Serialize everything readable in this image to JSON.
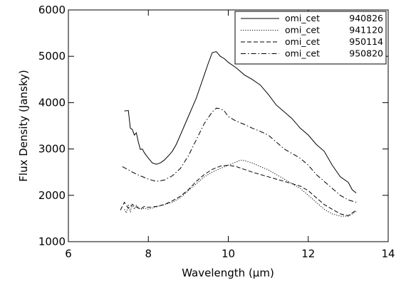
{
  "chart_data": {
    "type": "line",
    "title": "",
    "xlabel": "Wavelength (μm)",
    "ylabel": "Flux Density (Jansky)",
    "xlim": [
      6,
      14
    ],
    "ylim": [
      1000,
      6000
    ],
    "xticks": [
      6,
      8,
      10,
      12,
      14
    ],
    "yticks": [
      1000,
      2000,
      3000,
      4000,
      5000,
      6000
    ],
    "grid": false,
    "legend_position": "top-right",
    "series": [
      {
        "name": "omi_cet",
        "date": "940826",
        "style": "solid",
        "x": [
          7.4,
          7.5,
          7.55,
          7.6,
          7.65,
          7.7,
          7.75,
          7.8,
          7.85,
          7.9,
          8.0,
          8.1,
          8.2,
          8.3,
          8.4,
          8.5,
          8.6,
          8.7,
          8.8,
          8.9,
          9.0,
          9.1,
          9.2,
          9.3,
          9.4,
          9.5,
          9.6,
          9.7,
          9.8,
          9.9,
          10.0,
          10.2,
          10.4,
          10.6,
          10.8,
          11.0,
          11.2,
          11.4,
          11.6,
          11.8,
          12.0,
          12.2,
          12.4,
          12.6,
          12.8,
          13.0,
          13.1,
          13.2
        ],
        "y": [
          3820,
          3830,
          3450,
          3420,
          3300,
          3350,
          3150,
          2990,
          3000,
          2920,
          2800,
          2700,
          2670,
          2700,
          2760,
          2850,
          2950,
          3100,
          3300,
          3500,
          3700,
          3900,
          4100,
          4350,
          4600,
          4850,
          5080,
          5100,
          5000,
          4950,
          4870,
          4750,
          4600,
          4500,
          4380,
          4180,
          3950,
          3800,
          3650,
          3450,
          3300,
          3100,
          2950,
          2650,
          2400,
          2280,
          2120,
          2050
        ]
      },
      {
        "name": "omi_cet",
        "date": "941120",
        "style": "dotted",
        "x": [
          7.4,
          7.45,
          7.5,
          7.55,
          7.6,
          7.65,
          7.7,
          7.8,
          7.9,
          8.0,
          8.2,
          8.4,
          8.6,
          8.8,
          9.0,
          9.2,
          9.4,
          9.6,
          9.8,
          10.0,
          10.2,
          10.3,
          10.4,
          10.6,
          10.8,
          11.0,
          11.2,
          11.4,
          11.6,
          11.8,
          12.0,
          12.2,
          12.4,
          12.6,
          12.8,
          13.0,
          13.1,
          13.2
        ],
        "y": [
          1700,
          1620,
          1780,
          1650,
          1800,
          1700,
          1780,
          1700,
          1720,
          1700,
          1750,
          1800,
          1850,
          1950,
          2100,
          2250,
          2400,
          2500,
          2580,
          2650,
          2720,
          2760,
          2750,
          2700,
          2620,
          2550,
          2450,
          2350,
          2250,
          2150,
          2000,
          1850,
          1700,
          1600,
          1550,
          1550,
          1600,
          1650
        ]
      },
      {
        "name": "omi_cet",
        "date": "950114",
        "style": "dashed",
        "x": [
          7.3,
          7.4,
          7.5,
          7.6,
          7.7,
          7.8,
          7.9,
          8.0,
          8.2,
          8.4,
          8.6,
          8.8,
          9.0,
          9.2,
          9.4,
          9.6,
          9.8,
          10.0,
          10.2,
          10.4,
          10.6,
          10.8,
          11.0,
          11.2,
          11.4,
          11.6,
          11.8,
          12.0,
          12.2,
          12.4,
          12.6,
          12.8,
          13.0,
          13.2
        ],
        "y": [
          1680,
          1850,
          1720,
          1800,
          1750,
          1700,
          1760,
          1740,
          1760,
          1800,
          1880,
          1980,
          2120,
          2300,
          2450,
          2560,
          2630,
          2650,
          2620,
          2560,
          2500,
          2450,
          2400,
          2350,
          2300,
          2250,
          2200,
          2100,
          1950,
          1800,
          1700,
          1600,
          1560,
          1680
        ]
      },
      {
        "name": "omi_cet",
        "date": "950820",
        "style": "dashdot",
        "x": [
          7.35,
          7.5,
          7.6,
          7.8,
          8.0,
          8.2,
          8.4,
          8.6,
          8.8,
          9.0,
          9.2,
          9.4,
          9.6,
          9.7,
          9.8,
          9.9,
          10.0,
          10.2,
          10.4,
          10.6,
          10.8,
          11.0,
          11.2,
          11.4,
          11.6,
          11.8,
          12.0,
          12.2,
          12.4,
          12.6,
          12.8,
          13.0,
          13.2
        ],
        "y": [
          2620,
          2550,
          2500,
          2420,
          2350,
          2300,
          2330,
          2420,
          2580,
          2850,
          3200,
          3550,
          3800,
          3880,
          3870,
          3820,
          3700,
          3600,
          3530,
          3450,
          3380,
          3300,
          3150,
          3000,
          2900,
          2800,
          2650,
          2450,
          2300,
          2150,
          2000,
          1900,
          1850
        ]
      }
    ]
  }
}
